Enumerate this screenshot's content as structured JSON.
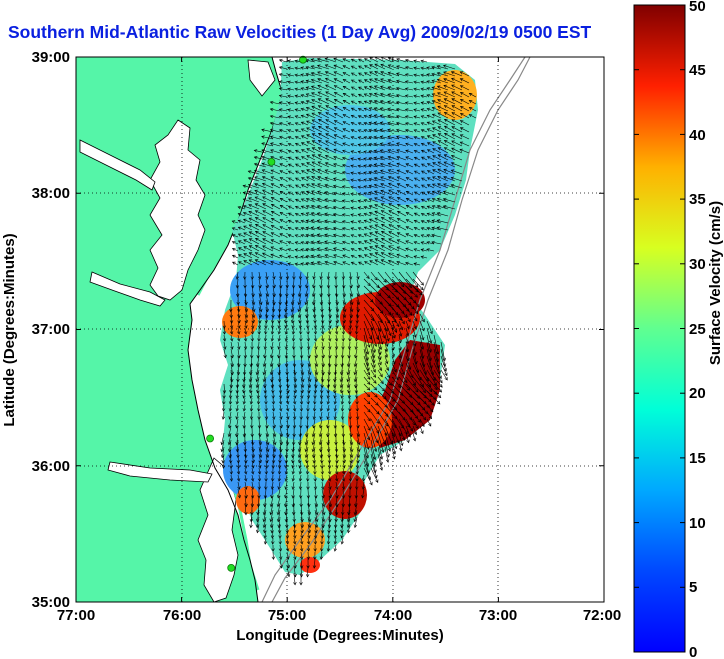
{
  "title": "Southern Mid-Atlantic Raw Velocities (1 Day Avg) 2009/02/19 0500 EST",
  "xlabel": "Longitude (Degrees:Minutes)",
  "ylabel": "Latitude (Degrees:Minutes)",
  "colorbar_label": "Surface Velocity (cm/s)",
  "x_ticks": [
    "77:00",
    "76:00",
    "75:00",
    "74:00",
    "73:00",
    "72:00"
  ],
  "y_ticks": [
    "39:00",
    "38:00",
    "37:00",
    "36:00",
    "35:00"
  ],
  "cbar_ticks": [
    "0",
    "5",
    "10",
    "15",
    "20",
    "25",
    "30",
    "35",
    "40",
    "45",
    "50"
  ],
  "colors": {
    "land": "#55f5a8",
    "title": "#0a20e0",
    "site": "#22dd22"
  },
  "map": {
    "lon_range": [
      -77,
      -72
    ],
    "lat_range": [
      35,
      39
    ],
    "velocity_range_cm_s": [
      0,
      50
    ],
    "colormap": "jet",
    "grid": "dotted",
    "radar_sites": [
      {
        "lon": -74.85,
        "lat": 38.98
      },
      {
        "lon": -75.15,
        "lat": 38.23
      },
      {
        "lon": -75.73,
        "lat": 36.2
      },
      {
        "lon": -75.53,
        "lat": 35.25
      }
    ]
  }
}
